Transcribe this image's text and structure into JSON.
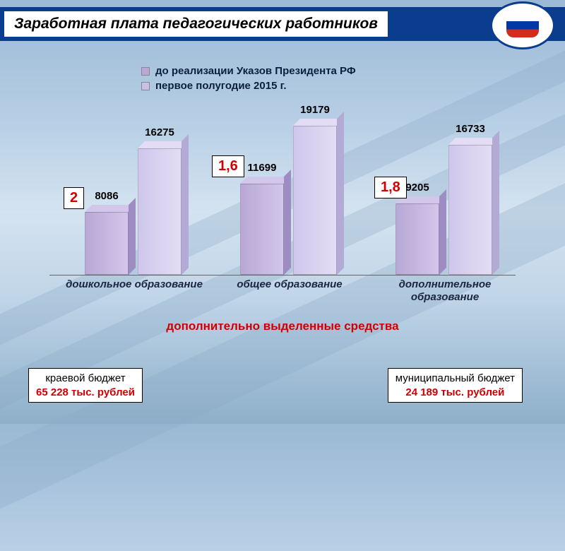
{
  "title": "Заработная плата педагогических работников",
  "legend": {
    "series1": {
      "label": "до реализации Указов Президента РФ",
      "color": "#b9a8d6"
    },
    "series2": {
      "label": "первое полугодие 2015 г.",
      "color": "#c9c0e8"
    }
  },
  "chart": {
    "type": "bar",
    "ymax": 20000,
    "bar_colors": {
      "s1": "#b9a8d6",
      "s1_top": "#d2c6ea",
      "s1_side": "#9e8dc2",
      "s2": "#cfc7ec",
      "s2_top": "#e2ddf4",
      "s2_side": "#b3abd6"
    },
    "groups": [
      {
        "category": "дошкольное образование",
        "v1": 8086,
        "v2": 16275,
        "ratio": "2"
      },
      {
        "category": "общее образование",
        "v1": 11699,
        "v2": 19179,
        "ratio": "1,6"
      },
      {
        "category": "дополнительное образование",
        "v1": 9205,
        "v2": 16733,
        "ratio": "1,8"
      }
    ]
  },
  "subtitle": "дополнительно выделенные средства",
  "budget1": {
    "label": "краевой бюджет",
    "amount": "65 228 тыс. рублей"
  },
  "budget2": {
    "label": "муниципальный бюджет",
    "amount": "24 189 тыс. рублей"
  }
}
